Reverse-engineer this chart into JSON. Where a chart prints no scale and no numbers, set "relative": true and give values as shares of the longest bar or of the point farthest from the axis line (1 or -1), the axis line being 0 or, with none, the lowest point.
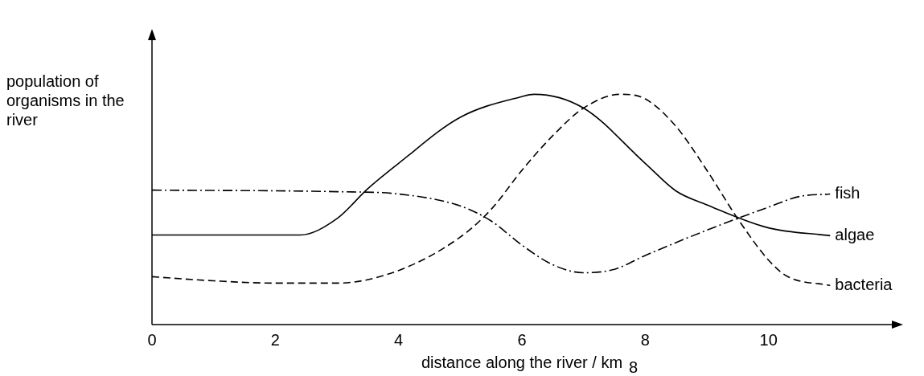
{
  "chart_data": {
    "type": "line",
    "relative": true,
    "xlabel": "distance along the river / km",
    "ylabel": "population of organisms in the river",
    "xlim": [
      0,
      12
    ],
    "xticks": [
      0,
      2,
      4,
      6,
      8,
      10
    ],
    "grid": false,
    "legend": false,
    "marker": "none",
    "annotations": [
      "8"
    ],
    "series": [
      {
        "name": "fish",
        "color": "#000000",
        "line_style": "dashdot",
        "x": [
          0,
          3,
          4,
          5,
          5.5,
          6,
          6.5,
          7,
          7.5,
          8,
          9,
          10,
          10.5,
          11
        ],
        "values": [
          0.584,
          0.577,
          0.567,
          0.515,
          0.45,
          0.345,
          0.26,
          0.225,
          0.24,
          0.3,
          0.41,
          0.51,
          0.556,
          0.567
        ]
      },
      {
        "name": "algae",
        "color": "#000000",
        "line_style": "solid",
        "x": [
          0,
          2.4,
          3,
          3.5,
          4,
          5,
          6,
          6.2,
          7,
          8,
          8.5,
          9,
          10,
          11
        ],
        "values": [
          0.389,
          0.389,
          0.46,
          0.59,
          0.7,
          0.9,
          0.99,
          1,
          0.94,
          0.7,
          0.58,
          0.52,
          0.42,
          0.386
        ]
      },
      {
        "name": "bacteria",
        "color": "#000000",
        "line_style": "dashed",
        "x": [
          0,
          1,
          2,
          3,
          4,
          5,
          5.5,
          6,
          6.5,
          7,
          7.6,
          8,
          8.5,
          9,
          9.5,
          10,
          10.3,
          11
        ],
        "values": [
          0.208,
          0.19,
          0.18,
          0.18,
          0.235,
          0.38,
          0.5,
          0.67,
          0.82,
          0.94,
          1,
          0.98,
          0.86,
          0.67,
          0.46,
          0.28,
          0.21,
          0.17
        ]
      }
    ]
  }
}
